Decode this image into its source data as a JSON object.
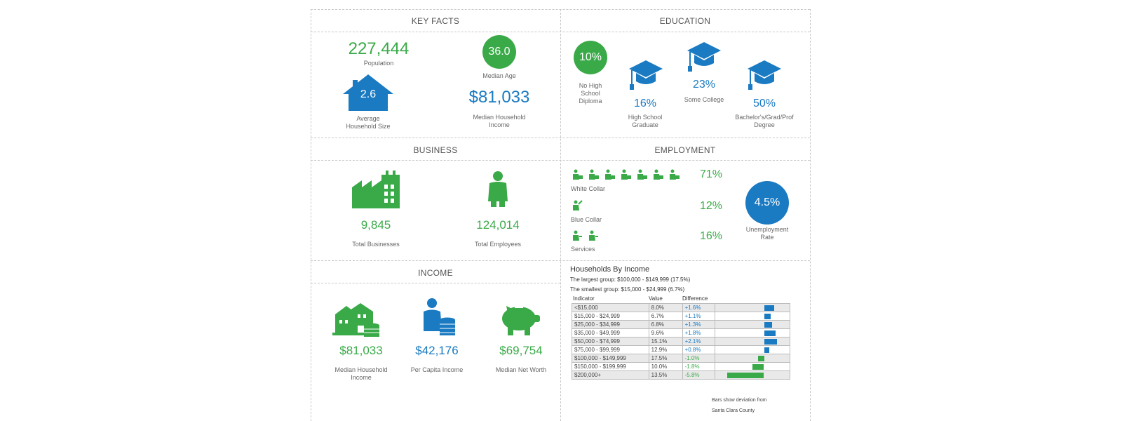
{
  "key_facts": {
    "title": "KEY FACTS",
    "population": {
      "value": "227,444",
      "label": "Population"
    },
    "median_age": {
      "value": "36.0",
      "label": "Median Age"
    },
    "household_size": {
      "value": "2.6",
      "label_1": "Average",
      "label_2": "Household Size"
    },
    "median_income": {
      "value": "$81,033",
      "label_1": "Median Household",
      "label_2": "Income"
    }
  },
  "education": {
    "title": "EDUCATION",
    "no_high_school": {
      "value": "10%",
      "label_1": "No High",
      "label_2": "School",
      "label_3": "Diploma"
    },
    "high_school": {
      "value": "16%",
      "label_1": "High School",
      "label_2": "Graduate"
    },
    "some_college": {
      "value": "23%",
      "label": "Some College"
    },
    "bachelors": {
      "value": "50%",
      "label_1": "Bachelor's/Grad/Prof",
      "label_2": "Degree"
    }
  },
  "business": {
    "title": "BUSINESS",
    "businesses": {
      "value": "9,845",
      "label": "Total Businesses"
    },
    "employees": {
      "value": "124,014",
      "label": "Total Employees"
    }
  },
  "employment": {
    "title": "EMPLOYMENT",
    "white_collar": {
      "value": "71%",
      "label": "White Collar"
    },
    "blue_collar": {
      "value": "12%",
      "label": "Blue Collar"
    },
    "services": {
      "value": "16%",
      "label": "Services"
    },
    "unemployment": {
      "value": "4.5%",
      "label_1": "Unemployment",
      "label_2": "Rate"
    }
  },
  "income": {
    "title": "INCOME",
    "median_household": {
      "value": "$81,033",
      "label_1": "Median Household",
      "label_2": "Income"
    },
    "per_capita": {
      "value": "$42,176",
      "label": "Per Capita Income"
    },
    "net_worth": {
      "value": "$69,754",
      "label": "Median Net Worth"
    }
  },
  "households_by_income": {
    "title": "Households By Income",
    "largest": "The largest group: $100,000 - $149,999 (17.5%)",
    "smallest": "The smallest group: $15,000 - $24,999 (6.7%)",
    "headers": {
      "indicator": "Indicator",
      "value": "Value",
      "difference": "Difference"
    },
    "rows": [
      {
        "indicator": "<$15,000",
        "value": "8.0%",
        "difference": "+1.6%",
        "diff": 1.6
      },
      {
        "indicator": "$15,000 - $24,999",
        "value": "6.7%",
        "difference": "+1.1%",
        "diff": 1.1
      },
      {
        "indicator": "$25,000 - $34,999",
        "value": "6.8%",
        "difference": "+1.3%",
        "diff": 1.3
      },
      {
        "indicator": "$35,000 - $49,999",
        "value": "9.6%",
        "difference": "+1.8%",
        "diff": 1.8
      },
      {
        "indicator": "$50,000 - $74,999",
        "value": "15.1%",
        "difference": "+2.1%",
        "diff": 2.1
      },
      {
        "indicator": "$75,000 - $99,999",
        "value": "12.9%",
        "difference": "+0.8%",
        "diff": 0.8
      },
      {
        "indicator": "$100,000 - $149,999",
        "value": "17.5%",
        "difference": "-1.0%",
        "diff": -1.0
      },
      {
        "indicator": "$150,000 - $199,999",
        "value": "10.0%",
        "difference": "-1.8%",
        "diff": -1.8
      },
      {
        "indicator": "$200,000+",
        "value": "13.5%",
        "difference": "-5.8%",
        "diff": -5.8
      }
    ],
    "note_1": "Bars show deviation from",
    "note_2": "Santa Clara County"
  },
  "colors": {
    "green": "#3aaa48",
    "blue": "#1a7ac2"
  }
}
